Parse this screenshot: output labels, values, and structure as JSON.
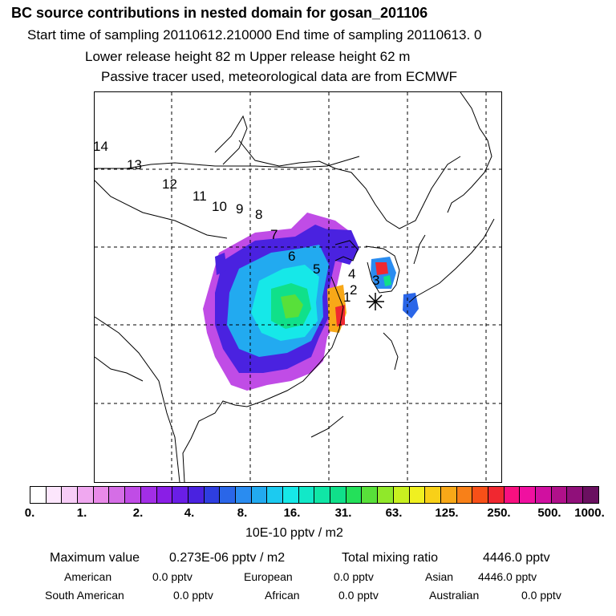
{
  "header": {
    "title": "BC  source contributions in nested domain for gosan_201106",
    "line2": "Start time of sampling 20110612.210000     End time of sampling 20110613.     0",
    "line3": "Lower release height   82 m          Upper release height   62 m",
    "line4": "Passive tracer used, meteorological data are from ECMWF"
  },
  "map": {
    "trajectory_labels": [
      "1",
      "2",
      "3",
      "4",
      "5",
      "6",
      "7",
      "8",
      "9",
      "10",
      "11",
      "12",
      "13",
      "14"
    ],
    "receptor_marker": "asterisk"
  },
  "colorbar": {
    "tick_labels": [
      "0.",
      "1.",
      "2.",
      "4.",
      "8.",
      "16.",
      "31.",
      "63.",
      "125.",
      "250.",
      "500.",
      "1000."
    ],
    "unit": "10E-10 pptv / m2",
    "colors": [
      "#ffffff",
      "#fce6fc",
      "#f7cdf7",
      "#f0a8f0",
      "#e98ae9",
      "#d56ee6",
      "#c04ce6",
      "#a22ee6",
      "#8a1ee6",
      "#6a1ee6",
      "#4a22e0",
      "#2e3ee0",
      "#2a66e8",
      "#2a8cf0",
      "#22aaf0",
      "#1ccaf0",
      "#16e8e8",
      "#12e8c8",
      "#10e6a6",
      "#10e08a",
      "#24e05a",
      "#58e03a",
      "#90e82a",
      "#c8f020",
      "#f0f020",
      "#f8d018",
      "#f8a818",
      "#f88018",
      "#f85018",
      "#f02830",
      "#f81080",
      "#f010a0",
      "#d010a0",
      "#b0108a",
      "#90107a",
      "#6a1060"
    ]
  },
  "stats": {
    "max_label": "Maximum value",
    "max_value": "0.273E-06 pptv / m2",
    "total_label": "Total mixing ratio",
    "total_value": "4446.0 pptv",
    "american_label": "American",
    "american_value": "0.0 pptv",
    "european_label": "European",
    "european_value": "0.0 pptv",
    "asian_label": "Asian",
    "asian_value": "4446.0 pptv",
    "south_american_label": "South American",
    "south_american_value": "0.0 pptv",
    "african_label": "African",
    "african_value": "0.0 pptv",
    "australian_label": "Australian",
    "australian_value": "0.0 pptv"
  }
}
